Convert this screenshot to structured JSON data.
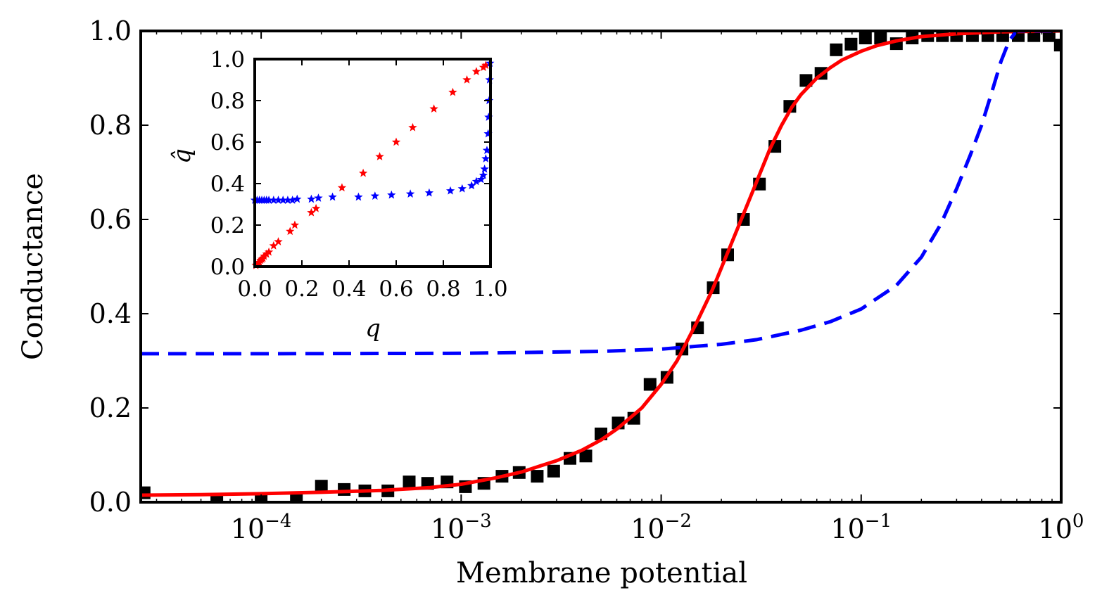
{
  "chart_data": [
    {
      "type": "scatter",
      "panel": "main",
      "xlabel": "Membrane potential",
      "ylabel": "Conductance",
      "xscale": "log",
      "xlim": [
        2.5e-05,
        1.0
      ],
      "ylim": [
        0.0,
        1.0
      ],
      "xticks": [
        0.0001,
        0.001,
        0.01,
        0.1,
        1
      ],
      "xtick_labels": [
        {
          "base": "10",
          "exp": "−4"
        },
        {
          "base": "10",
          "exp": "−3"
        },
        {
          "base": "10",
          "exp": "−2"
        },
        {
          "base": "10",
          "exp": "−1"
        },
        {
          "base": "10",
          "exp": "0"
        }
      ],
      "yticks": [
        0.0,
        0.2,
        0.4,
        0.6,
        0.8,
        1.0
      ],
      "ytick_labels": [
        "0.0",
        "0.2",
        "0.4",
        "0.6",
        "0.8",
        "1.0"
      ],
      "grid": false,
      "series": [
        {
          "kind": "markers",
          "marker": "square",
          "color": "#000000",
          "x": [
            2.6e-05,
            6e-05,
            0.0001,
            0.00015,
            0.0002,
            0.00026,
            0.00033,
            0.00043,
            0.00055,
            0.00068,
            0.00085,
            0.00105,
            0.0013,
            0.0016,
            0.00195,
            0.0024,
            0.0029,
            0.0035,
            0.0042,
            0.005,
            0.0061,
            0.0073,
            0.0088,
            0.0107,
            0.0127,
            0.0152,
            0.0182,
            0.0215,
            0.0258,
            0.031,
            0.037,
            0.044,
            0.053,
            0.063,
            0.075,
            0.089,
            0.105,
            0.125,
            0.15,
            0.18,
            0.215,
            0.255,
            0.3,
            0.36,
            0.43,
            0.51,
            0.61,
            0.73,
            0.87,
            0.99
          ],
          "y": [
            0.02,
            0.003,
            0.004,
            0.008,
            0.034,
            0.027,
            0.024,
            0.024,
            0.043,
            0.04,
            0.043,
            0.033,
            0.04,
            0.055,
            0.063,
            0.055,
            0.066,
            0.093,
            0.098,
            0.145,
            0.168,
            0.178,
            0.25,
            0.265,
            0.325,
            0.37,
            0.455,
            0.525,
            0.6,
            0.675,
            0.755,
            0.84,
            0.895,
            0.91,
            0.96,
            0.972,
            0.985,
            0.985,
            0.973,
            0.985,
            0.99,
            0.99,
            0.99,
            0.99,
            0.99,
            0.99,
            0.99,
            0.99,
            0.99,
            0.97
          ]
        },
        {
          "kind": "line",
          "style": "solid",
          "color": "#ff0000",
          "x": [
            2.5e-05,
            5e-05,
            0.0001,
            0.0002,
            0.0004,
            0.0007,
            0.001,
            0.0015,
            0.002,
            0.003,
            0.004,
            0.005,
            0.006,
            0.008,
            0.01,
            0.012,
            0.015,
            0.018,
            0.022,
            0.026,
            0.03,
            0.035,
            0.04,
            0.045,
            0.05,
            0.06,
            0.07,
            0.08,
            0.1,
            0.12,
            0.15,
            0.2,
            0.3,
            0.5,
            1.0
          ],
          "y": [
            0.015,
            0.016,
            0.018,
            0.021,
            0.025,
            0.031,
            0.038,
            0.052,
            0.064,
            0.088,
            0.11,
            0.132,
            0.155,
            0.2,
            0.25,
            0.3,
            0.38,
            0.45,
            0.54,
            0.615,
            0.68,
            0.75,
            0.8,
            0.838,
            0.865,
            0.9,
            0.922,
            0.938,
            0.957,
            0.969,
            0.979,
            0.988,
            0.994,
            0.998,
            1.0
          ]
        },
        {
          "kind": "line",
          "style": "dashed",
          "color": "#0000ff",
          "x": [
            2.5e-05,
            0.0001,
            0.001,
            0.005,
            0.01,
            0.02,
            0.03,
            0.05,
            0.07,
            0.1,
            0.15,
            0.2,
            0.25,
            0.3,
            0.35,
            0.4,
            0.45,
            0.5,
            0.55,
            0.6,
            1.0
          ],
          "y": [
            0.315,
            0.315,
            0.316,
            0.32,
            0.325,
            0.335,
            0.345,
            0.365,
            0.383,
            0.41,
            0.46,
            0.52,
            0.59,
            0.665,
            0.735,
            0.8,
            0.87,
            0.935,
            0.98,
            1.0,
            1.0
          ]
        }
      ]
    },
    {
      "type": "scatter",
      "panel": "inset",
      "xlabel": "q",
      "ylabel": "q̂",
      "xlim": [
        0.0,
        1.0
      ],
      "ylim": [
        0.0,
        1.0
      ],
      "xticks": [
        0.0,
        0.2,
        0.4,
        0.6,
        0.8,
        1.0
      ],
      "xtick_labels": [
        "0.0",
        "0.2",
        "0.4",
        "0.6",
        "0.8",
        "1.0"
      ],
      "yticks": [
        0.0,
        0.2,
        0.4,
        0.6,
        0.8,
        1.0
      ],
      "ytick_labels": [
        "0.0",
        "0.2",
        "0.4",
        "0.6",
        "0.8",
        "1.0"
      ],
      "grid": false,
      "series": [
        {
          "kind": "markers",
          "marker": "star",
          "color": "#ff0000",
          "x": [
            0.005,
            0.01,
            0.015,
            0.02,
            0.025,
            0.03,
            0.035,
            0.04,
            0.05,
            0.06,
            0.08,
            0.1,
            0.15,
            0.17,
            0.24,
            0.26,
            0.37,
            0.46,
            0.53,
            0.6,
            0.67,
            0.76,
            0.84,
            0.9,
            0.94,
            0.97,
            0.98
          ],
          "y": [
            0.005,
            0.01,
            0.015,
            0.02,
            0.03,
            0.035,
            0.04,
            0.05,
            0.06,
            0.07,
            0.1,
            0.12,
            0.17,
            0.2,
            0.26,
            0.28,
            0.38,
            0.45,
            0.53,
            0.6,
            0.67,
            0.76,
            0.84,
            0.9,
            0.94,
            0.96,
            0.97
          ]
        },
        {
          "kind": "markers",
          "marker": "star",
          "color": "#0000ff",
          "x": [
            0.0,
            0.01,
            0.02,
            0.03,
            0.04,
            0.05,
            0.06,
            0.08,
            0.1,
            0.12,
            0.14,
            0.16,
            0.18,
            0.24,
            0.27,
            0.33,
            0.44,
            0.51,
            0.58,
            0.66,
            0.74,
            0.83,
            0.88,
            0.92,
            0.94,
            0.96,
            0.97,
            0.975,
            0.98,
            0.985,
            0.99,
            0.992,
            0.994,
            0.996,
            0.998
          ],
          "y": [
            0.32,
            0.32,
            0.32,
            0.32,
            0.32,
            0.32,
            0.32,
            0.32,
            0.32,
            0.32,
            0.32,
            0.32,
            0.325,
            0.325,
            0.33,
            0.335,
            0.335,
            0.34,
            0.345,
            0.35,
            0.355,
            0.365,
            0.375,
            0.39,
            0.41,
            0.42,
            0.44,
            0.47,
            0.52,
            0.56,
            0.64,
            0.72,
            0.8,
            0.9,
            0.98
          ]
        }
      ]
    }
  ]
}
